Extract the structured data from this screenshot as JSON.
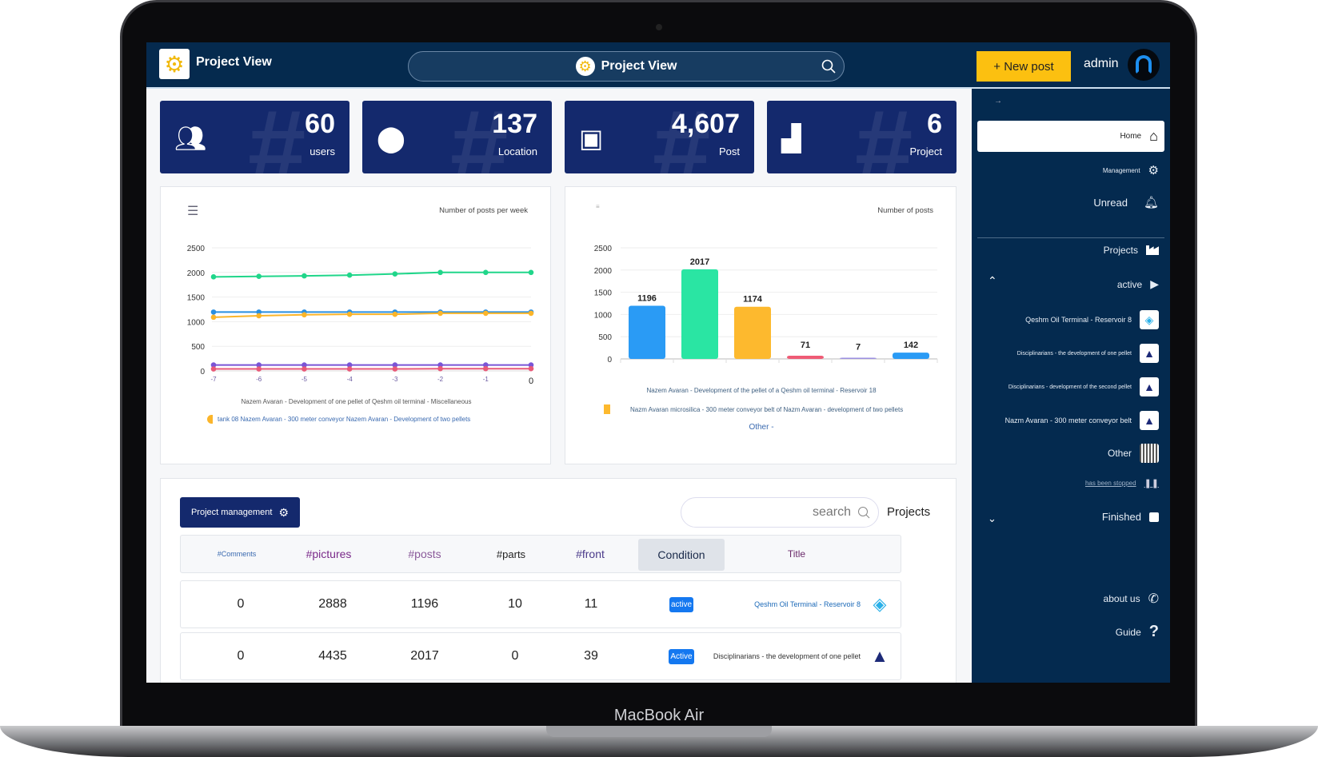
{
  "device": {
    "label": "MacBook Air"
  },
  "header": {
    "app_title": "Project View",
    "search_title": "Project View",
    "new_post": "+ New post",
    "user": "admin"
  },
  "stats": [
    {
      "value": "60",
      "label": "users",
      "icon": "users-icon"
    },
    {
      "value": "137",
      "label": "Location",
      "icon": "map-pin-icon"
    },
    {
      "value": "4,607",
      "label": "Post",
      "icon": "images-icon"
    },
    {
      "value": "6",
      "label": "Project",
      "icon": "factory-icon"
    }
  ],
  "chart_data": [
    {
      "type": "line",
      "title": "Number of posts per week",
      "x": [
        -7,
        -6,
        -5,
        -4,
        -3,
        -2,
        -1,
        0
      ],
      "ylim": [
        0,
        2500
      ],
      "yticks": [
        "2500",
        "2000",
        "1500",
        "1000",
        "500",
        "0"
      ],
      "xticks": [
        "-7",
        "-6",
        "-5",
        "-4",
        "-3",
        "-2",
        "-1",
        "0"
      ],
      "series": [
        {
          "name": "green",
          "color": "#20d68a",
          "values": [
            1910,
            1920,
            1930,
            1945,
            1970,
            2000,
            2000,
            2000
          ]
        },
        {
          "name": "blue",
          "color": "#2a8fe0",
          "values": [
            1195,
            1195,
            1195,
            1195,
            1195,
            1195,
            1195,
            1195
          ]
        },
        {
          "name": "orange",
          "color": "#fbb52a",
          "values": [
            1090,
            1120,
            1140,
            1150,
            1150,
            1170,
            1170,
            1170
          ]
        },
        {
          "name": "purple",
          "color": "#7a55d6",
          "values": [
            120,
            120,
            120,
            120,
            120,
            120,
            120,
            120
          ]
        },
        {
          "name": "red",
          "color": "#e85a78",
          "values": [
            40,
            40,
            40,
            40,
            40,
            45,
            45,
            45
          ]
        }
      ],
      "legend": [
        "Nazem Avaran - Development of one pellet of Qeshm oil terminal - Miscellaneous",
        "tank 08 Nazem Avaran - 300 meter conveyor Nazem Avaran - Development of two pellets"
      ]
    },
    {
      "type": "bar",
      "title": "Number of posts",
      "ylim": [
        0,
        2500
      ],
      "yticks": [
        "2500",
        "2000",
        "1500",
        "1000",
        "500",
        "0"
      ],
      "values": [
        1196,
        2017,
        1174,
        71,
        7,
        142
      ],
      "colors": [
        "#2a9bf5",
        "#2ae5a3",
        "#fdb92e",
        "#ef5b75",
        "#9b8fe0",
        "#2a9bf5"
      ],
      "legend": [
        "Nazem Avaran - Development of the pellet of a Qeshm oil terminal - Reservoir 18",
        "Nazm Avaran microsilica - 300 meter conveyor belt of Nazm Avaran - development of two pellets",
        "Other -"
      ]
    }
  ],
  "table": {
    "manage_button": "Project management",
    "search_placeholder": "search",
    "title": "Projects",
    "headers": [
      "#Comments",
      "#pictures",
      "#posts",
      "#parts",
      "#front",
      "Condition",
      "Title"
    ],
    "rows": [
      {
        "cells": [
          "0",
          "2888",
          "1196",
          "10",
          "11"
        ],
        "status": "active",
        "title": "Qeshm Oil Terminal - Reservoir 8"
      },
      {
        "cells": [
          "0",
          "4435",
          "2017",
          "0",
          "39"
        ],
        "status": "Active",
        "title": "Disciplinarians - the development of one pellet"
      }
    ]
  },
  "sidebar": {
    "home": "Home",
    "management": "Management",
    "unread": "Unread",
    "projects": "Projects",
    "active": "active",
    "active_projects": [
      "Qeshm Oil Terminal - Reservoir 8",
      "Disciplinarians - the development of one pellet",
      "Disciplinarians - development of the second pellet",
      "Nazm Avaran - 300 meter conveyor belt"
    ],
    "other": "Other",
    "stopped": "has been stopped",
    "finished": "Finished",
    "about": "about us",
    "guide": "Guide"
  }
}
